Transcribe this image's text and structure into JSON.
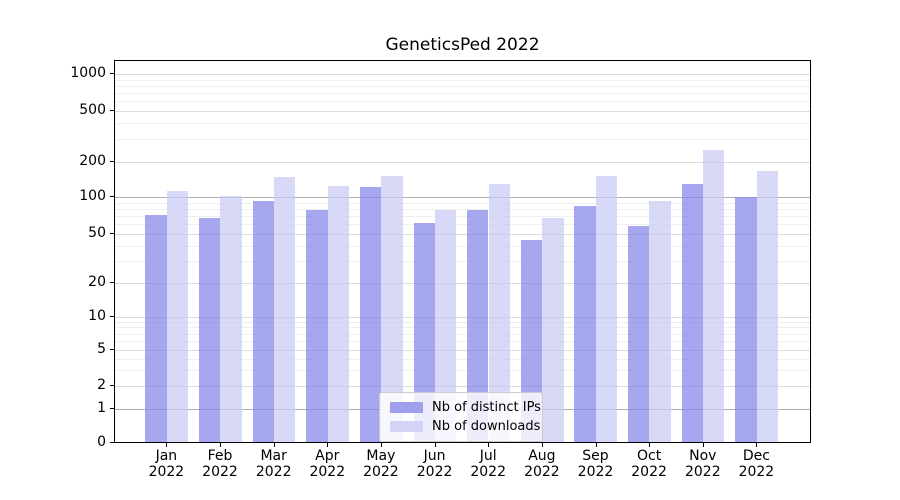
{
  "page": {
    "background": "#ffffff"
  },
  "chart_data": {
    "type": "bar",
    "title": "GeneticsPed 2022",
    "x_months": [
      "Jan",
      "Feb",
      "Mar",
      "Apr",
      "May",
      "Jun",
      "Jul",
      "Aug",
      "Sep",
      "Oct",
      "Nov",
      "Dec"
    ],
    "x_year": "2022",
    "categories": [
      "Jan 2022",
      "Feb 2022",
      "Mar 2022",
      "Apr 2022",
      "May 2022",
      "Jun 2022",
      "Jul 2022",
      "Aug 2022",
      "Sep 2022",
      "Oct 2022",
      "Nov 2022",
      "Dec 2022"
    ],
    "series": [
      {
        "name": "Nb of distinct IPs",
        "color": "#a7a7f0",
        "fill": "rgba(133,133,234,0.72)",
        "values": [
          72,
          67,
          94,
          79,
          123,
          62,
          78,
          45,
          84,
          58,
          129,
          100
        ]
      },
      {
        "name": "Nb of downloads",
        "color": "#d8d8f7",
        "fill": "rgba(201,201,244,0.72)",
        "values": [
          112,
          102,
          148,
          125,
          152,
          79,
          131,
          68,
          152,
          94,
          250,
          168
        ]
      }
    ],
    "y_ticks": [
      1000,
      500,
      200,
      100,
      50,
      20,
      10,
      5,
      2,
      1,
      0
    ],
    "y_scale": "symlog",
    "ylim": [
      0,
      1285
    ],
    "grid": {
      "major_color": "#dcdcdc",
      "minor_color": "#efefef",
      "emphasis_color": "#b0b0b0",
      "emphasis_values": [
        1,
        100
      ]
    },
    "legend": {
      "position": "lower center",
      "background": "rgba(255,255,255,0.8)",
      "border_color": "#cccccc",
      "items": [
        {
          "label": "Nb of distinct IPs",
          "swatch": "#9f9fee"
        },
        {
          "label": "Nb of downloads",
          "swatch": "#d4d4f6"
        }
      ]
    }
  }
}
